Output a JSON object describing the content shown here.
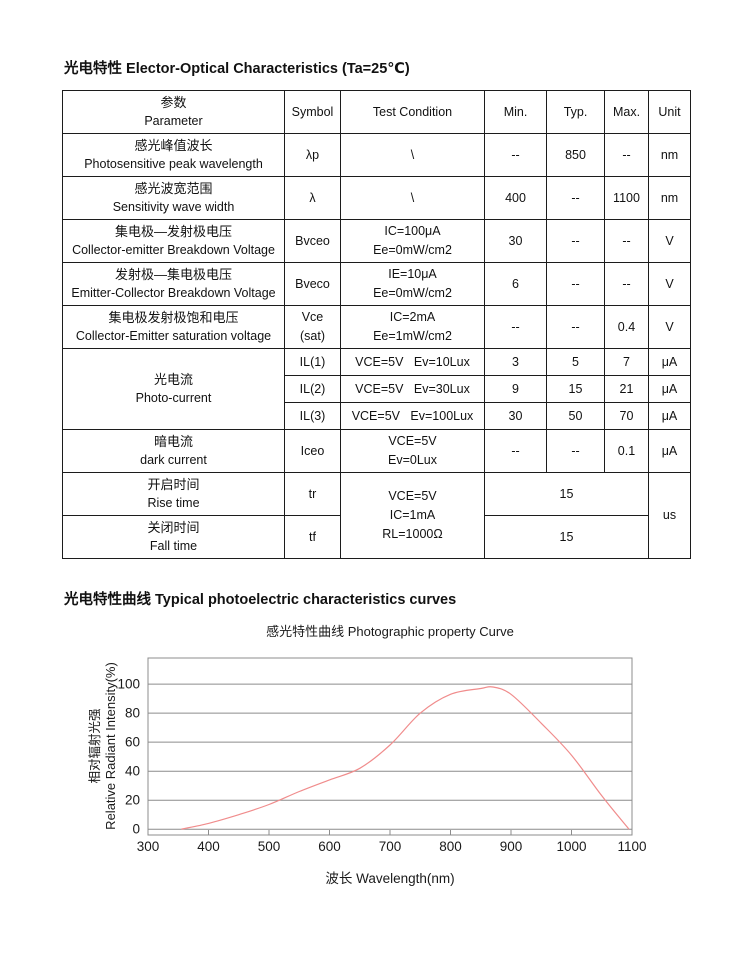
{
  "doc": {
    "section1_title": "光电特性 Elector-Optical Characteristics (Ta=25℃)",
    "section2_title": "光电特性曲线 Typical photoelectric characteristics curves"
  },
  "table": {
    "header": {
      "param_zh": "参数",
      "param_en": "Parameter",
      "symbol": "Symbol",
      "condition": "Test Condition",
      "min": "Min.",
      "typ": "Typ.",
      "max": "Max.",
      "unit": "Unit"
    },
    "peak": {
      "zh": "感光峰值波长",
      "en": "Photosensitive peak wavelength",
      "symbol": "λp",
      "cond": "\\",
      "min": "--",
      "typ": "850",
      "max": "--",
      "unit": "nm"
    },
    "range": {
      "zh": "感光波宽范围",
      "en": "Sensitivity wave width",
      "symbol": "λ",
      "cond": "\\",
      "min": "400",
      "typ": "--",
      "max": "1100",
      "unit": "nm"
    },
    "bvceo": {
      "zh": "集电极—发射极电压",
      "en": "Collector-emitter Breakdown Voltage",
      "symbol": "Bvceo",
      "cond1": "IC=100μA",
      "cond2": "Ee=0mW/cm2",
      "min": "30",
      "typ": "--",
      "max": "--",
      "unit": "V"
    },
    "bveco": {
      "zh": "发射极—集电极电压",
      "en": "Emitter-Collector Breakdown Voltage",
      "symbol": "Bveco",
      "cond1": "IE=10μA",
      "cond2": "Ee=0mW/cm2",
      "min": "6",
      "typ": "--",
      "max": "--",
      "unit": "V"
    },
    "vcesat": {
      "zh": "集电极发射极饱和电压",
      "en": "Collector-Emitter saturation voltage",
      "symbol1": "Vce",
      "symbol2": "(sat)",
      "cond1": "IC=2mA",
      "cond2": "Ee=1mW/cm2",
      "min": "--",
      "typ": "--",
      "max": "0.4",
      "unit": "V"
    },
    "photo": {
      "zh": "光电流",
      "en": "Photo-current",
      "il1": {
        "symbol": "IL(1)",
        "cond": "VCE=5V   Ev=10Lux",
        "min": "3",
        "typ": "5",
        "max": "7",
        "unit": "μA"
      },
      "il2": {
        "symbol": "IL(2)",
        "cond": "VCE=5V   Ev=30Lux",
        "min": "9",
        "typ": "15",
        "max": "21",
        "unit": "μA"
      },
      "il3": {
        "symbol": "IL(3)",
        "cond": "VCE=5V   Ev=100Lux",
        "min": "30",
        "typ": "50",
        "max": "70",
        "unit": "μA"
      }
    },
    "dark": {
      "zh": "暗电流",
      "en": "dark current",
      "symbol": "Iceo",
      "cond1": "VCE=5V",
      "cond2": "Ev=0Lux",
      "min": "--",
      "typ": "--",
      "max": "0.1",
      "unit": "μA"
    },
    "rise": {
      "zh": "开启时间",
      "en": "Rise time",
      "symbol": "tr",
      "value": "15"
    },
    "fall": {
      "zh": "关闭时间",
      "en": "Fall time",
      "symbol": "tf",
      "value": "15"
    },
    "time": {
      "cond1": "VCE=5V",
      "cond2": "IC=1mA",
      "cond3": "RL=1000Ω",
      "unit": "us"
    }
  },
  "chart_data": {
    "type": "line",
    "title": "感光特性曲线  Photographic property Curve",
    "xlabel": "波长  Wavelength(nm)",
    "ylabel_zh": "相对辐射光强",
    "ylabel_en": "Relative  Radiant Intensity(%)",
    "x_ticks": [
      300,
      400,
      500,
      600,
      700,
      800,
      900,
      1000,
      1100
    ],
    "y_ticks": [
      0,
      20,
      40,
      60,
      80,
      100
    ],
    "xlim": [
      300,
      1100
    ],
    "ylim": [
      -4,
      118
    ],
    "grid": "horizontal",
    "legend": "none",
    "line_color": "#f08c8c",
    "axis_color": "#8c8c8c",
    "series": [
      {
        "name": "relative radiant intensity",
        "points": [
          [
            355,
            0
          ],
          [
            400,
            4
          ],
          [
            450,
            10
          ],
          [
            500,
            17
          ],
          [
            550,
            26
          ],
          [
            600,
            34
          ],
          [
            650,
            42
          ],
          [
            700,
            58
          ],
          [
            750,
            80
          ],
          [
            800,
            93
          ],
          [
            850,
            97
          ],
          [
            870,
            98
          ],
          [
            900,
            93
          ],
          [
            950,
            73
          ],
          [
            1000,
            51
          ],
          [
            1050,
            23
          ],
          [
            1095,
            0
          ]
        ]
      }
    ]
  }
}
